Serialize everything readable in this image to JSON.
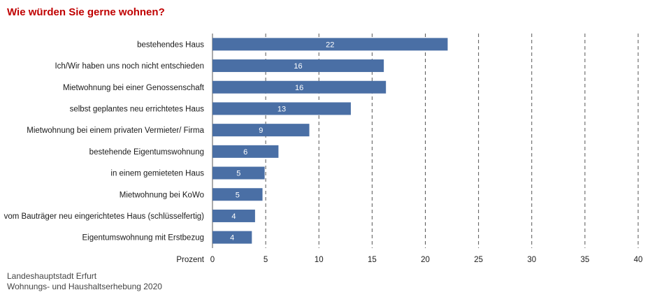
{
  "chart_data": {
    "type": "bar",
    "orientation": "horizontal",
    "title": "Wie würden Sie gerne wohnen?",
    "xlabel": "Prozent",
    "xlim": [
      0,
      40
    ],
    "xticks": [
      0,
      5,
      10,
      15,
      20,
      25,
      30,
      35,
      40
    ],
    "grid": "vertical dashed",
    "bar_color": "#4a6fa5",
    "categories": [
      "bestehendes Haus",
      "Ich/Wir haben uns noch nicht entschieden",
      "Mietwohnung bei einer Genossenschaft",
      "selbst geplantes neu errichtetes Haus",
      "Mietwohnung bei einem privaten Vermieter/ Firma",
      "bestehende Eigentumswohnung",
      "in einem gemieteten Haus",
      "Mietwohnung bei KoWo",
      "vom Bauträger neu eingerichtetes Haus (schlüsselfertig)",
      "Eigentumswohnung mit Erstbezug"
    ],
    "values": [
      22.1,
      16.1,
      16.3,
      13.0,
      9.1,
      6.2,
      4.9,
      4.7,
      4.0,
      3.7
    ],
    "data_labels": [
      "22",
      "16",
      "16",
      "13",
      "9",
      "6",
      "5",
      "5",
      "4",
      "4"
    ]
  },
  "footer": {
    "line1": "Landeshauptstadt Erfurt",
    "line2": "Wohnungs- und Haushaltserhebung 2020"
  }
}
